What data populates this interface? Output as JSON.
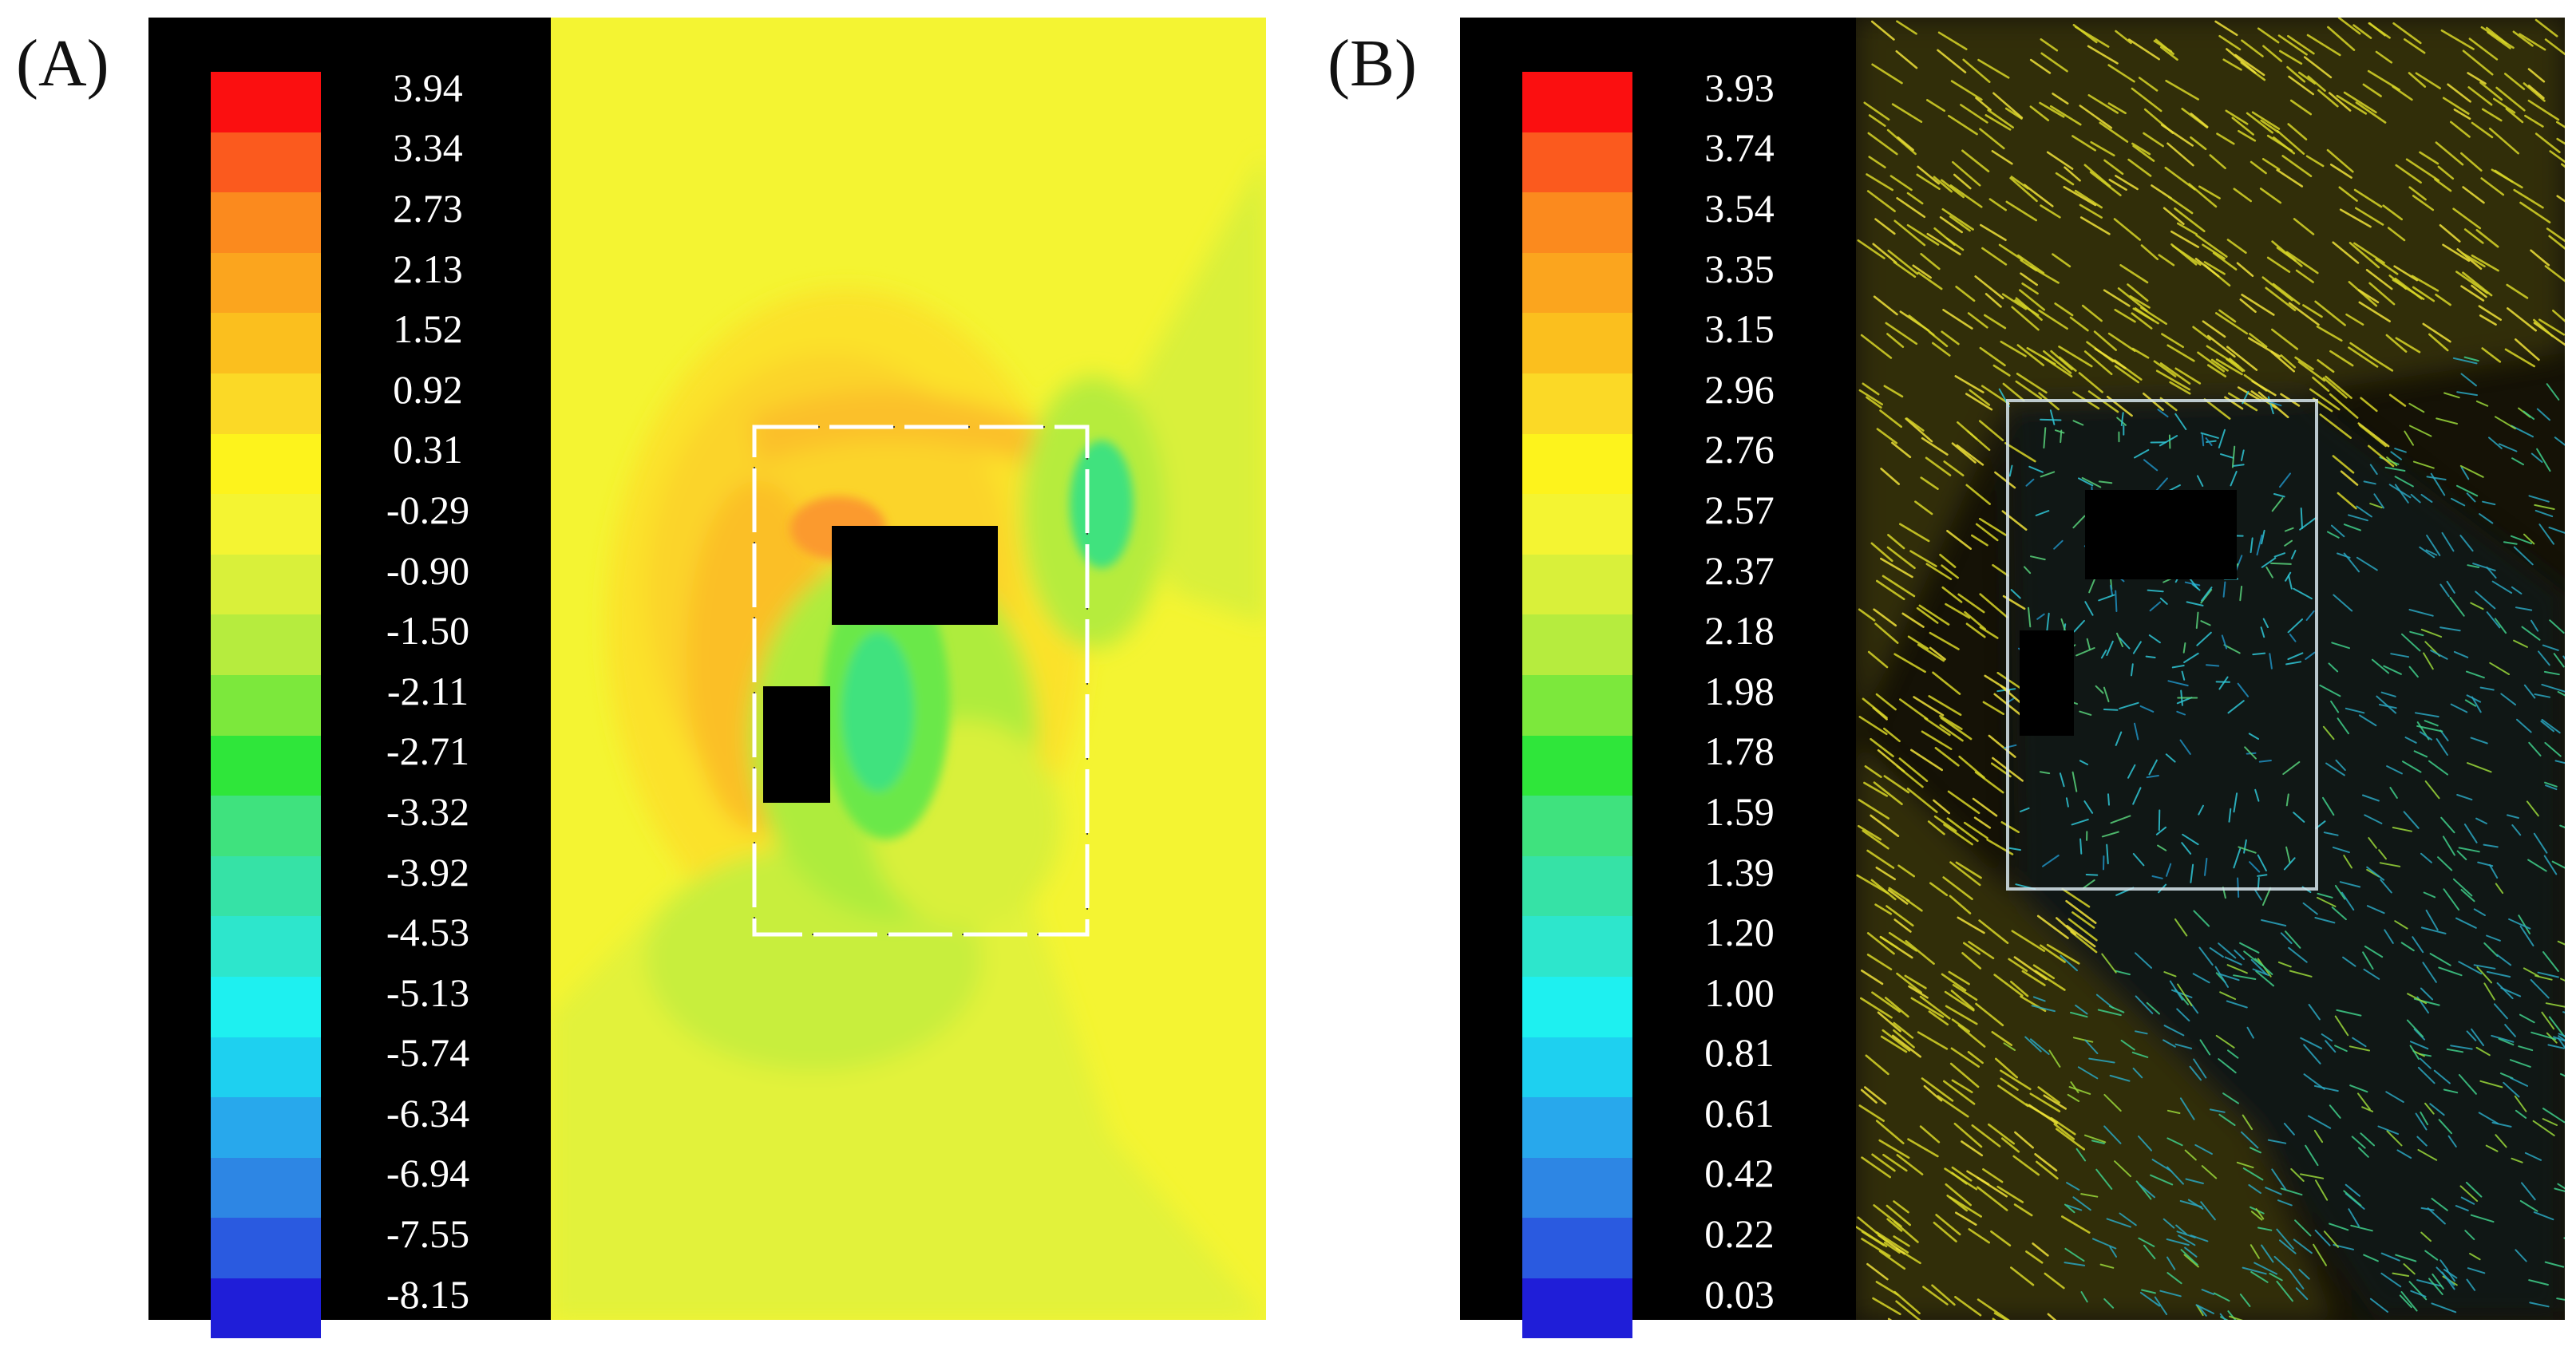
{
  "figure": {
    "panels": [
      {
        "id": "A",
        "label": "(A)",
        "legend": {
          "ticks": [
            "3.94",
            "3.34",
            "2.73",
            "2.13",
            "1.52",
            "0.92",
            "0.31",
            "-0.29",
            "-0.90",
            "-1.50",
            "-2.11",
            "-2.71",
            "-3.32",
            "-3.92",
            "-4.53",
            "-5.13",
            "-5.74",
            "-6.34",
            "-6.94",
            "-7.55",
            "-8.15"
          ],
          "colors": [
            "#fb0f10",
            "#fb5a1e",
            "#fb8a1e",
            "#fba51e",
            "#fbbf1e",
            "#fbd926",
            "#fdf31c",
            "#f4f432",
            "#d9f03a",
            "#b6ec3e",
            "#7ce83c",
            "#2fe63a",
            "#3fe27e",
            "#36e2a6",
            "#2de6cc",
            "#1ef0f0",
            "#1ed0f0",
            "#28a8ec",
            "#2d86e4",
            "#2a5ae0",
            "#1f1ed8"
          ]
        }
      },
      {
        "id": "B",
        "label": "(B)",
        "legend": {
          "ticks": [
            "3.93",
            "3.74",
            "3.54",
            "3.35",
            "3.15",
            "2.96",
            "2.76",
            "2.57",
            "2.37",
            "2.18",
            "1.98",
            "1.78",
            "1.59",
            "1.39",
            "1.20",
            "1.00",
            "0.81",
            "0.61",
            "0.42",
            "0.22",
            "0.03"
          ],
          "colors": [
            "#fb0f10",
            "#fb5a1e",
            "#fb8a1e",
            "#fba51e",
            "#fbbf1e",
            "#fbd926",
            "#fdf31c",
            "#f4f432",
            "#d9f03a",
            "#b6ec3e",
            "#7ce83c",
            "#2fe63a",
            "#3fe27e",
            "#36e2a6",
            "#2de6cc",
            "#1ef0f0",
            "#1ed0f0",
            "#28a8ec",
            "#2d86e4",
            "#2a5ae0",
            "#1f1ed8"
          ]
        }
      }
    ]
  }
}
